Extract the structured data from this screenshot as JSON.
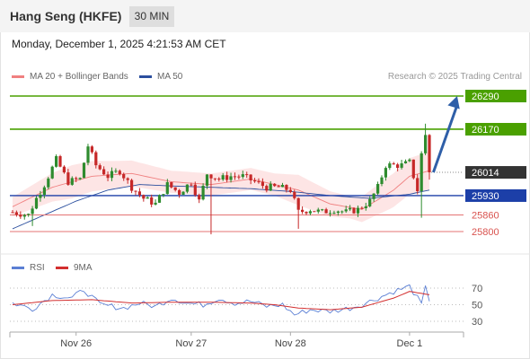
{
  "header": {
    "title": "Hang Seng (HKFE)",
    "timeframe": "30 MIN"
  },
  "datetime": "Monday, December 1, 2025 4:21:53 AM CET",
  "copyright": "Research © 2025 Trading Central",
  "colors": {
    "green": "#4aa000",
    "blue": "#1c3fa8",
    "red": "#e57373",
    "bull": "#2e8b2e",
    "bear": "#c62828",
    "band_fill": "#fde2e2",
    "ma20": "#f08080",
    "ma50": "#2b4f9e",
    "rsi": "#5b7fd4",
    "rsi_ma": "#d32f2f",
    "arrow": "#2f5fa8",
    "current": "#333333"
  },
  "chart_data": [
    {
      "type": "candlestick",
      "title": "",
      "legend": [
        {
          "name": "MA 20 + Bollinger Bands",
          "color": "#f08080"
        },
        {
          "name": "MA 50",
          "color": "#2b4f9e"
        }
      ],
      "legend_position": "top-left",
      "ylim": [
        25780,
        26310
      ],
      "x_labels": [
        "Nov 26",
        "Nov 27",
        "Nov 28",
        "Dec 1"
      ],
      "x_label_index": [
        16,
        45,
        70,
        100
      ],
      "bar_count": 106,
      "levels": [
        {
          "value": 26290,
          "label": "26290",
          "kind": "resistance",
          "color": "#4aa000"
        },
        {
          "value": 26170,
          "label": "26170",
          "kind": "resistance",
          "color": "#4aa000"
        },
        {
          "value": 26014,
          "label": "26014",
          "kind": "current",
          "color": "#333333"
        },
        {
          "value": 25930,
          "label": "25930",
          "kind": "pivot",
          "color": "#1c3fa8"
        },
        {
          "value": 25860,
          "label": "25860",
          "kind": "support",
          "color": "#e57373"
        },
        {
          "value": 25800,
          "label": "25800",
          "kind": "support",
          "color": "#e57373"
        }
      ],
      "arrow": {
        "from": {
          "index": 106,
          "value": 26014
        },
        "to": {
          "index": 112,
          "value": 26290
        }
      },
      "waypoints": [
        [
          0,
          25870
        ],
        [
          4,
          25860
        ],
        [
          6,
          25920
        ],
        [
          8,
          25970
        ],
        [
          11,
          26060
        ],
        [
          14,
          25980
        ],
        [
          17,
          25990
        ],
        [
          19,
          26110
        ],
        [
          21,
          26040
        ],
        [
          24,
          26000
        ],
        [
          27,
          26020
        ],
        [
          30,
          25960
        ],
        [
          33,
          25920
        ],
        [
          36,
          25900
        ],
        [
          39,
          25970
        ],
        [
          42,
          25940
        ],
        [
          45,
          25980
        ],
        [
          47,
          25910
        ],
        [
          49,
          26010
        ],
        [
          52,
          25990
        ],
        [
          55,
          26000
        ],
        [
          58,
          26000
        ],
        [
          61,
          25980
        ],
        [
          64,
          25960
        ],
        [
          67,
          25960
        ],
        [
          70,
          25950
        ],
        [
          72,
          25870
        ],
        [
          75,
          25880
        ],
        [
          78,
          25870
        ],
        [
          81,
          25880
        ],
        [
          84,
          25870
        ],
        [
          87,
          25880
        ],
        [
          90,
          25910
        ],
        [
          92,
          25960
        ],
        [
          94,
          26040
        ],
        [
          96,
          26040
        ],
        [
          98,
          26040
        ],
        [
          100,
          26050
        ],
        [
          102,
          25950
        ],
        [
          103,
          26080
        ],
        [
          104,
          26150
        ],
        [
          105,
          26000
        ]
      ],
      "ma20_points": [
        [
          0,
          25890
        ],
        [
          10,
          25960
        ],
        [
          20,
          26000
        ],
        [
          30,
          26010
        ],
        [
          40,
          25980
        ],
        [
          50,
          25970
        ],
        [
          60,
          25990
        ],
        [
          66,
          25970
        ],
        [
          72,
          25950
        ],
        [
          80,
          25900
        ],
        [
          88,
          25880
        ],
        [
          96,
          25950
        ],
        [
          100,
          26000
        ],
        [
          105,
          26020
        ]
      ],
      "band_width_points": [
        [
          0,
          35
        ],
        [
          15,
          60
        ],
        [
          25,
          50
        ],
        [
          40,
          40
        ],
        [
          55,
          40
        ],
        [
          66,
          40
        ],
        [
          72,
          55
        ],
        [
          85,
          40
        ],
        [
          95,
          60
        ],
        [
          105,
          70
        ]
      ],
      "ma50_points": [
        [
          0,
          25810
        ],
        [
          8,
          25860
        ],
        [
          16,
          25910
        ],
        [
          24,
          25950
        ],
        [
          32,
          25970
        ],
        [
          40,
          25965
        ],
        [
          50,
          25960
        ],
        [
          60,
          25955
        ],
        [
          70,
          25945
        ],
        [
          80,
          25930
        ],
        [
          90,
          25920
        ],
        [
          100,
          25935
        ],
        [
          105,
          25950
        ]
      ],
      "spikes": [
        {
          "index": 5,
          "low": 25820
        },
        {
          "index": 50,
          "low": 25790
        },
        {
          "index": 72,
          "low": 25810
        },
        {
          "index": 103,
          "low": 25850
        },
        {
          "index": 104,
          "high": 26190
        }
      ]
    },
    {
      "type": "line",
      "title": "",
      "legend": [
        {
          "name": "RSI",
          "color": "#5b7fd4"
        },
        {
          "name": "9MA",
          "color": "#d32f2f"
        }
      ],
      "legend_position": "top-left",
      "ylim": [
        20,
        80
      ],
      "yticks": [
        70,
        50,
        30
      ],
      "rsi_points": [
        [
          0,
          52
        ],
        [
          5,
          45
        ],
        [
          10,
          62
        ],
        [
          15,
          58
        ],
        [
          18,
          68
        ],
        [
          22,
          50
        ],
        [
          28,
          46
        ],
        [
          32,
          52
        ],
        [
          36,
          48
        ],
        [
          40,
          58
        ],
        [
          44,
          52
        ],
        [
          48,
          50
        ],
        [
          52,
          58
        ],
        [
          56,
          52
        ],
        [
          60,
          54
        ],
        [
          64,
          48
        ],
        [
          68,
          50
        ],
        [
          71,
          38
        ],
        [
          75,
          44
        ],
        [
          80,
          42
        ],
        [
          85,
          46
        ],
        [
          88,
          50
        ],
        [
          92,
          58
        ],
        [
          96,
          66
        ],
        [
          100,
          72
        ],
        [
          102,
          58
        ],
        [
          103,
          50
        ],
        [
          104,
          70
        ],
        [
          105,
          56
        ]
      ],
      "rsi_ma_points": [
        [
          0,
          50
        ],
        [
          10,
          55
        ],
        [
          20,
          56
        ],
        [
          30,
          52
        ],
        [
          40,
          53
        ],
        [
          50,
          53
        ],
        [
          60,
          52
        ],
        [
          66,
          50
        ],
        [
          72,
          46
        ],
        [
          80,
          44
        ],
        [
          88,
          47
        ],
        [
          96,
          58
        ],
        [
          100,
          66
        ],
        [
          105,
          62
        ]
      ]
    }
  ]
}
